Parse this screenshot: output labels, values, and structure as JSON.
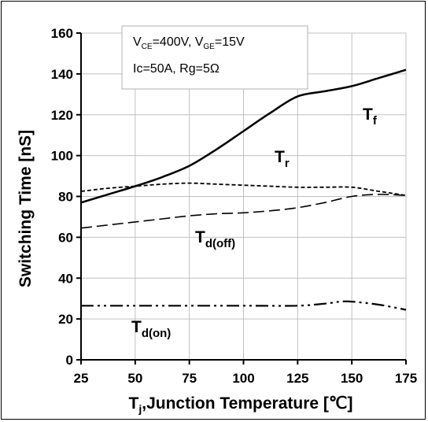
{
  "chart_data": {
    "type": "line",
    "title": "",
    "xlabel": "Tj,Junction Temperature [℃]",
    "xlabel_main": "T",
    "xlabel_sub": "j",
    "xlabel_rest": ",Junction Temperature [",
    "xlabel_unit": "℃",
    "xlabel_close": "]",
    "ylabel": "Switching Time [nS]",
    "xlim": [
      25,
      175
    ],
    "ylim": [
      0,
      160
    ],
    "xticks": [
      25,
      50,
      75,
      100,
      125,
      150,
      175
    ],
    "yticks": [
      0,
      20,
      40,
      60,
      80,
      100,
      120,
      140,
      160
    ],
    "grid": true,
    "annotation": {
      "line1": "V_CE=400V, V_GE=15V",
      "line1_parts": [
        "V",
        "CE",
        "=400V, V",
        "GE",
        "=15V"
      ],
      "line2": "Ic=50A, Rg=5Ω"
    },
    "series": [
      {
        "name": "Tf",
        "label_main": "T",
        "label_sub": "f",
        "style": "solid",
        "color": "#000000",
        "x": [
          25,
          37.5,
          50,
          62.5,
          75,
          87.5,
          100,
          112.5,
          125,
          137.5,
          150,
          162.5,
          175
        ],
        "y": [
          77,
          81,
          85,
          89.5,
          95,
          103,
          112,
          121,
          129,
          131.5,
          134,
          138,
          142
        ]
      },
      {
        "name": "Tr",
        "label_main": "T",
        "label_sub": "r",
        "style": "short-dash",
        "color": "#000000",
        "x": [
          25,
          37.5,
          50,
          62.5,
          75,
          87.5,
          100,
          112.5,
          125,
          137.5,
          150,
          162.5,
          175
        ],
        "y": [
          82.5,
          84,
          85,
          86,
          86.5,
          86,
          85.5,
          85,
          84.5,
          84.5,
          84.5,
          82.5,
          80.5
        ]
      },
      {
        "name": "Td(off)",
        "label_main": "T",
        "label_sub": "d(off)",
        "style": "long-dash",
        "color": "#000000",
        "x": [
          25,
          37.5,
          50,
          62.5,
          75,
          87.5,
          100,
          112.5,
          125,
          137.5,
          150,
          162.5,
          175
        ],
        "y": [
          64.5,
          66,
          67.5,
          69,
          70.5,
          71.5,
          72,
          73,
          74.5,
          77,
          80,
          81,
          80.5
        ]
      },
      {
        "name": "Td(on)",
        "label_main": "T",
        "label_sub": "d(on)",
        "style": "dash-dot-dot",
        "color": "#000000",
        "x": [
          25,
          50,
          75,
          100,
          125,
          137.5,
          145,
          150,
          162.5,
          175
        ],
        "y": [
          26.5,
          26.5,
          26.5,
          26.5,
          26.5,
          27.5,
          28.5,
          28.5,
          27,
          24.5
        ]
      }
    ]
  }
}
